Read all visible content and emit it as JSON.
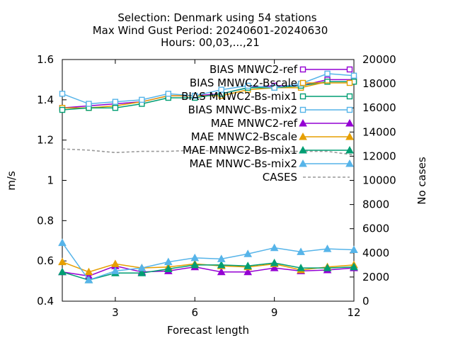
{
  "chart_data": {
    "type": "line",
    "title_lines": [
      "Selection: Denmark using    54 stations",
      "Max Wind Gust   Period: 20240601-20240630",
      "Hours: 00,03,...,21"
    ],
    "xlabel": "Forecast length",
    "ylabel": "m/s",
    "y2label": "No cases",
    "xlim": [
      1,
      12
    ],
    "ylim": [
      0.4,
      1.6
    ],
    "y2lim": [
      0,
      20000
    ],
    "xticks": [
      3,
      6,
      9,
      12
    ],
    "yticks": [
      "0.4",
      "0.6",
      "0.8",
      "1",
      "1.2",
      "1.4",
      "1.6"
    ],
    "y2ticks": [
      "0",
      "2000",
      "4000",
      "6000",
      "8000",
      "10000",
      "12000",
      "14000",
      "16000",
      "18000",
      "20000"
    ],
    "legend_position": "top-right",
    "x": [
      1,
      2,
      3,
      4,
      5,
      6,
      7,
      8,
      9,
      10,
      11,
      12
    ],
    "series": [
      {
        "name": "BIAS MNWC2-ref",
        "color": "#9400d3",
        "marker": "open-square",
        "axis": "y1",
        "values": [
          1.36,
          1.37,
          1.38,
          1.39,
          1.42,
          1.42,
          1.43,
          1.46,
          1.47,
          1.47,
          1.5,
          1.5
        ]
      },
      {
        "name": "BIAS MNWC2-Bscale",
        "color": "#e69f00",
        "marker": "open-square",
        "axis": "y1",
        "values": [
          1.36,
          1.36,
          1.37,
          1.39,
          1.42,
          1.42,
          1.42,
          1.45,
          1.46,
          1.46,
          1.49,
          1.49
        ]
      },
      {
        "name": "BIAS MNWC2-Bs-mix1",
        "color": "#009e73",
        "marker": "open-square",
        "axis": "y1",
        "values": [
          1.35,
          1.36,
          1.36,
          1.38,
          1.41,
          1.41,
          1.43,
          1.46,
          1.46,
          1.47,
          1.49,
          1.49
        ]
      },
      {
        "name": "BIAS MNWC-Bs-mix2",
        "color": "#56b4e9",
        "marker": "open-square",
        "axis": "y1",
        "values": [
          1.43,
          1.38,
          1.39,
          1.4,
          1.43,
          1.42,
          1.45,
          1.47,
          1.46,
          1.48,
          1.53,
          1.52
        ]
      },
      {
        "name": "MAE MNWC2-ref",
        "color": "#9400d3",
        "marker": "filled-triangle",
        "axis": "y1",
        "values": [
          0.545,
          0.525,
          0.575,
          0.545,
          0.55,
          0.57,
          0.545,
          0.545,
          0.565,
          0.55,
          0.555,
          0.565
        ]
      },
      {
        "name": "MAE MNWC2-Bscale",
        "color": "#e69f00",
        "marker": "filled-triangle",
        "axis": "y1",
        "values": [
          0.595,
          0.545,
          0.585,
          0.565,
          0.57,
          0.585,
          0.575,
          0.57,
          0.585,
          0.555,
          0.57,
          0.58
        ]
      },
      {
        "name": "MAE MNWC2-Bs-mix1",
        "color": "#009e73",
        "marker": "filled-triangle",
        "axis": "y1",
        "values": [
          0.545,
          0.505,
          0.54,
          0.54,
          0.56,
          0.58,
          0.58,
          0.575,
          0.59,
          0.565,
          0.565,
          0.57
        ]
      },
      {
        "name": "MAE MNWC-Bs-mix2",
        "color": "#56b4e9",
        "marker": "filled-triangle",
        "axis": "y1",
        "values": [
          0.69,
          0.505,
          0.55,
          0.565,
          0.595,
          0.615,
          0.61,
          0.635,
          0.665,
          0.645,
          0.66,
          0.655
        ]
      },
      {
        "name": "CASES",
        "color": "#999999",
        "marker": "none",
        "dash": true,
        "axis": "y2",
        "values": [
          12600,
          12500,
          12300,
          12400,
          12400,
          12500,
          12400,
          12450,
          12400,
          12400,
          12400,
          12100
        ]
      }
    ]
  }
}
